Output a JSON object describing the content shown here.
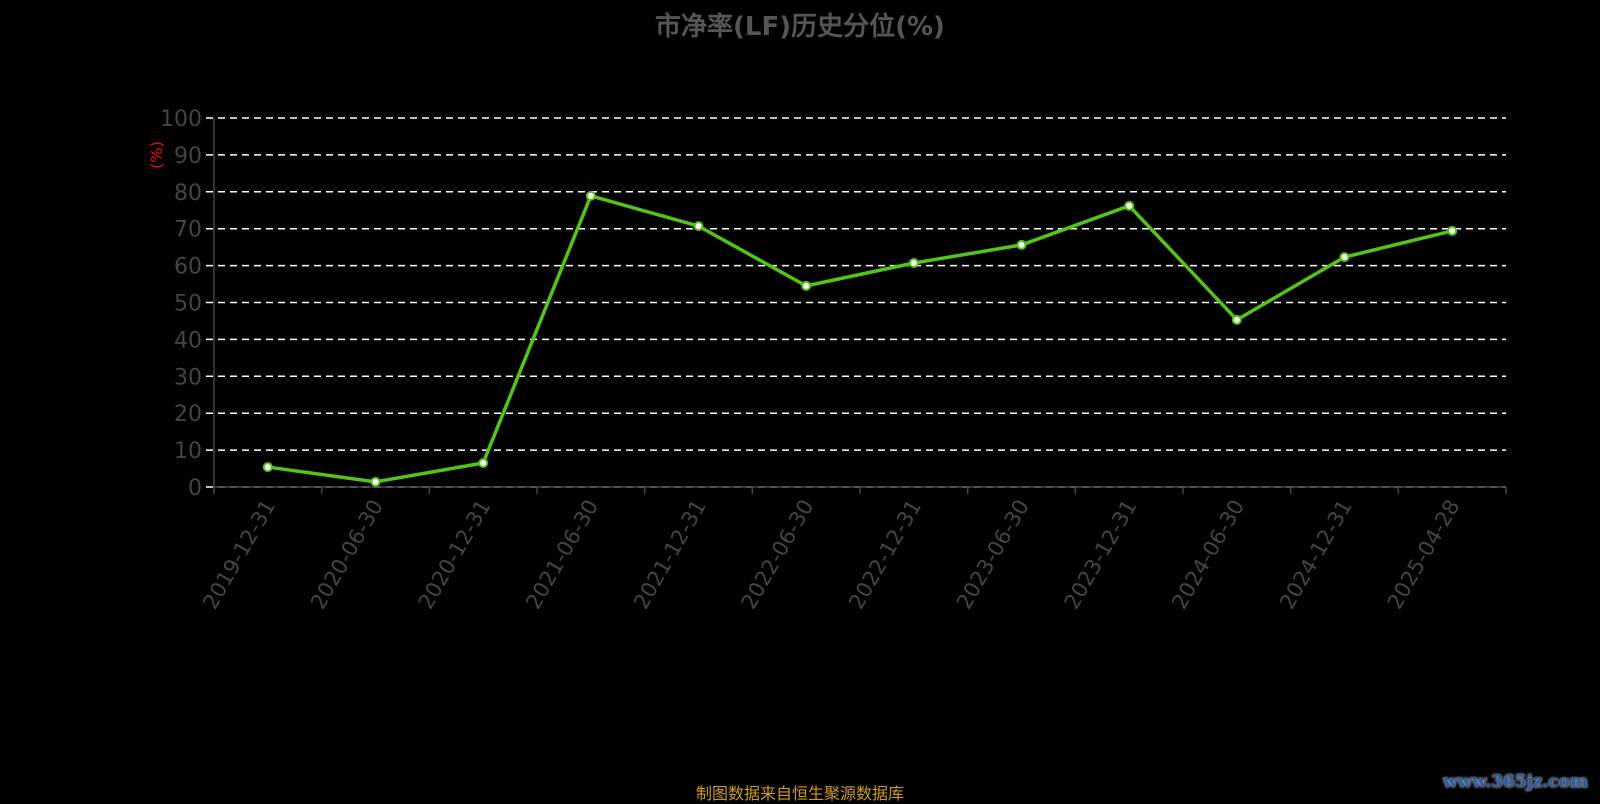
{
  "chart_data": {
    "type": "line",
    "title": "市净率(LF)历史分位(%)",
    "ylabel": "(%)",
    "xlabel": "",
    "ylim": [
      0,
      100
    ],
    "yticks": [
      0,
      10,
      20,
      30,
      40,
      50,
      60,
      70,
      80,
      90,
      100
    ],
    "grid": true,
    "categories": [
      "2019-12-31",
      "2020-06-30",
      "2020-12-31",
      "2021-06-30",
      "2021-12-31",
      "2022-06-30",
      "2022-12-31",
      "2023-06-30",
      "2023-12-31",
      "2024-06-30",
      "2024-12-31",
      "2025-04-28"
    ],
    "series": [
      {
        "values": [
          5.4,
          1.4,
          6.5,
          78.9,
          70.7,
          54.5,
          60.7,
          65.6,
          76.2,
          45.3,
          62.3,
          69.4
        ]
      }
    ],
    "colors": {
      "line": "#52c41a",
      "marker": "#ffffff",
      "grid": "#ffffff",
      "axis": "#444444",
      "ylabel": "#ff0000"
    }
  },
  "footer": "制图数据来自恒生聚源数据库",
  "watermark": "www.365jz.com"
}
